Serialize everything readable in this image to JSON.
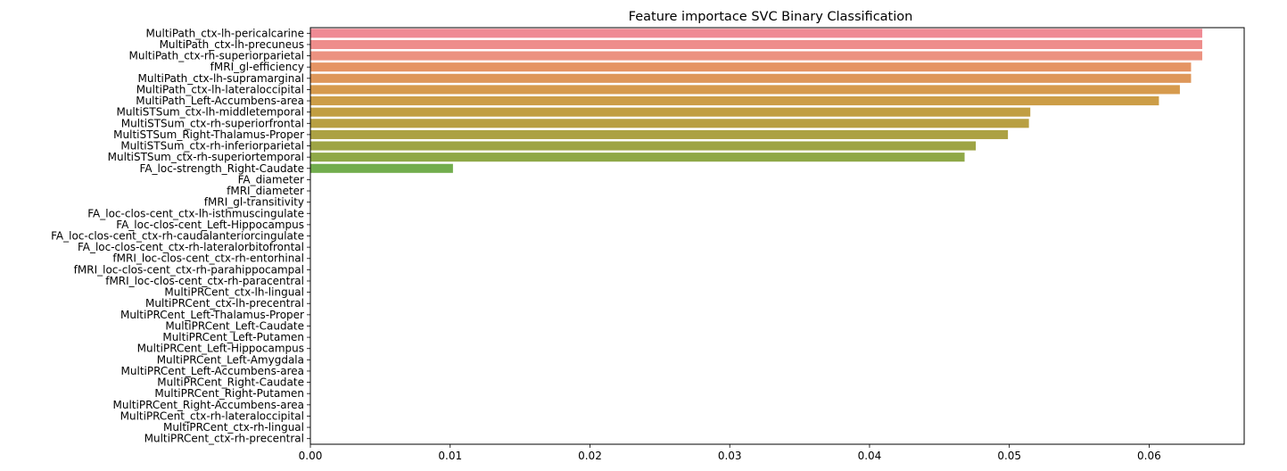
{
  "chart_data": {
    "type": "bar",
    "orientation": "horizontal",
    "title": "Feature importace SVC Binary Classification",
    "xlabel": "",
    "ylabel": "",
    "xlim": [
      0,
      0.0668
    ],
    "xticks": [
      "0.00",
      "0.01",
      "0.02",
      "0.03",
      "0.04",
      "0.05",
      "0.06"
    ],
    "grid": false,
    "categories": [
      "MultiPath_ctx-lh-pericalcarine",
      "MultiPath_ctx-lh-precuneus",
      "MultiPath_ctx-rh-superiorparietal",
      "fMRI_gl-efficiency",
      "MultiPath_ctx-lh-supramarginal",
      "MultiPath_ctx-lh-lateraloccipital",
      "MultiPath_Left-Accumbens-area",
      "MultiSTSum_ctx-lh-middletemporal",
      "MultiSTSum_ctx-rh-superiorfrontal",
      "MultiSTSum_Right-Thalamus-Proper",
      "MultiSTSum_ctx-rh-inferiorparietal",
      "MultiSTSum_ctx-rh-superiortemporal",
      "FA_loc-strength_Right-Caudate",
      "FA_diameter",
      "fMRI_diameter",
      "fMRI_gl-transitivity",
      "FA_loc-clos-cent_ctx-lh-isthmuscingulate",
      "FA_loc-clos-cent_Left-Hippocampus",
      "FA_loc-clos-cent_ctx-rh-caudalanteriorcingulate",
      "FA_loc-clos-cent_ctx-rh-lateralorbitofrontal",
      "fMRI_loc-clos-cent_ctx-rh-entorhinal",
      "fMRI_loc-clos-cent_ctx-rh-parahippocampal",
      "fMRI_loc-clos-cent_ctx-rh-paracentral",
      "MultiPRCent_ctx-lh-lingual",
      "MultiPRCent_ctx-lh-precentral",
      "MultiPRCent_Left-Thalamus-Proper",
      "MultiPRCent_Left-Caudate",
      "MultiPRCent_Left-Putamen",
      "MultiPRCent_Left-Hippocampus",
      "MultiPRCent_Left-Amygdala",
      "MultiPRCent_Left-Accumbens-area",
      "MultiPRCent_Right-Caudate",
      "MultiPRCent_Right-Putamen",
      "MultiPRCent_Right-Accumbens-area",
      "MultiPRCent_ctx-rh-lateraloccipital",
      "MultiPRCent_ctx-rh-lingual",
      "MultiPRCent_ctx-rh-precentral"
    ],
    "values": [
      0.0638,
      0.0638,
      0.0638,
      0.063,
      0.063,
      0.0622,
      0.0607,
      0.0515,
      0.0514,
      0.0499,
      0.0476,
      0.0468,
      0.0102,
      0,
      0,
      0,
      0,
      0,
      0,
      0,
      0,
      0,
      0,
      0,
      0,
      0,
      0,
      0,
      0,
      0,
      0,
      0,
      0,
      0,
      0,
      0,
      0
    ],
    "colors": [
      "#ef8a94",
      "#ee8d8b",
      "#ec9280",
      "#e59464",
      "#de975a",
      "#d69a4d",
      "#cc9d47",
      "#c19e42",
      "#b89f42",
      "#aca143",
      "#9ea444",
      "#8fa847",
      "#72ad4d"
    ]
  }
}
